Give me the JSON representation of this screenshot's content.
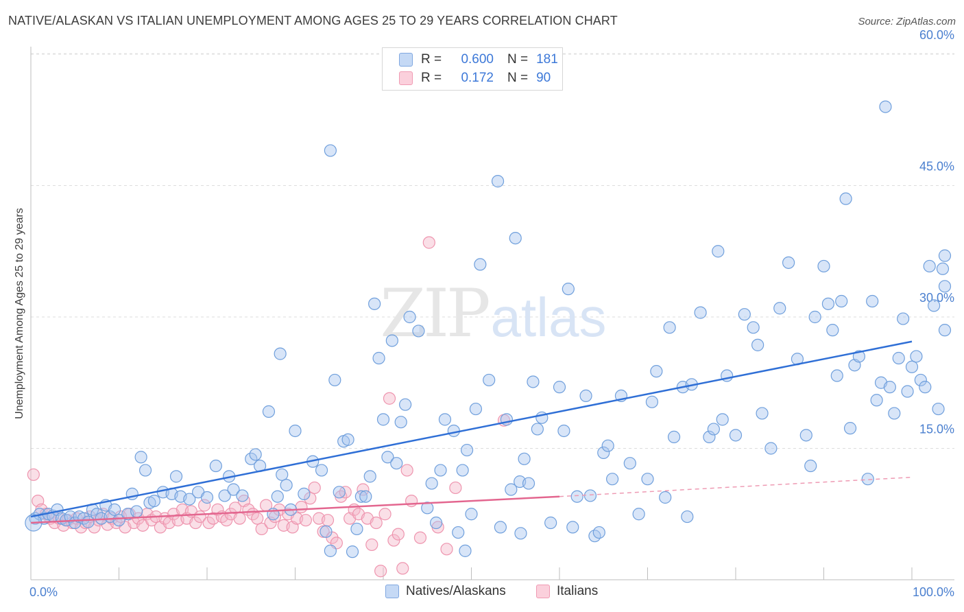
{
  "title": "NATIVE/ALASKAN VS ITALIAN UNEMPLOYMENT AMONG AGES 25 TO 29 YEARS CORRELATION CHART",
  "source": "Source: ZipAtlas.com",
  "watermark": {
    "zip": "ZIP",
    "atlas": "atlas"
  },
  "legend": {
    "rows": [
      {
        "r_label": "R =",
        "r_value": "0.600",
        "n_label": "N =",
        "n_value": "181",
        "color": "#a9c6ef"
      },
      {
        "r_label": "R =",
        "r_value": "0.172",
        "n_label": "N =",
        "n_value": "90",
        "color": "#f5b8c9"
      }
    ]
  },
  "bottom_legend": [
    {
      "label": "Natives/Alaskans",
      "color": "#a9c6ef"
    },
    {
      "label": "Italians",
      "color": "#f5b8c9"
    }
  ],
  "chart_data": {
    "type": "scatter",
    "title": "NATIVE/ALASKAN VS ITALIAN UNEMPLOYMENT AMONG AGES 25 TO 29 YEARS CORRELATION CHART",
    "xlabel": "",
    "ylabel": "Unemployment Among Ages 25 to 29 years",
    "xlim": [
      0,
      100
    ],
    "ylim": [
      0,
      62
    ],
    "x_tick_labels": [
      "0.0%",
      "100.0%"
    ],
    "y_ticks": [
      15,
      30,
      45,
      60
    ],
    "y_tick_labels": [
      "15.0%",
      "30.0%",
      "45.0%",
      "60.0%"
    ],
    "grid": true,
    "series": [
      {
        "name": "Natives/Alaskans",
        "color": "#6fa0e0",
        "trend": {
          "x": [
            0,
            100
          ],
          "y": [
            7.2,
            27.2
          ],
          "style": "solid"
        },
        "points": [
          [
            0.5,
            7
          ],
          [
            1,
            7.5
          ],
          [
            1.5,
            7
          ],
          [
            2,
            7.5
          ],
          [
            2.5,
            7.3
          ],
          [
            3,
            8
          ],
          [
            3.5,
            7
          ],
          [
            4,
            6.8
          ],
          [
            4.5,
            7.2
          ],
          [
            5,
            6.5
          ],
          [
            5.5,
            7.2
          ],
          [
            6,
            7
          ],
          [
            6.5,
            6.6
          ],
          [
            7,
            8
          ],
          [
            7.5,
            7.5
          ],
          [
            8,
            7
          ],
          [
            8.5,
            8.5
          ],
          [
            9,
            7.2
          ],
          [
            9.5,
            8
          ],
          [
            10,
            6.8
          ],
          [
            11,
            7.5
          ],
          [
            11.5,
            9.8
          ],
          [
            12,
            7.8
          ],
          [
            12.5,
            14
          ],
          [
            13,
            12.5
          ],
          [
            13.5,
            8.8
          ],
          [
            14,
            9
          ],
          [
            15,
            10
          ],
          [
            16,
            9.8
          ],
          [
            16.5,
            11.8
          ],
          [
            17,
            9.5
          ],
          [
            18,
            9.2
          ],
          [
            19,
            10
          ],
          [
            20,
            9.4
          ],
          [
            21,
            13
          ],
          [
            22,
            9.6
          ],
          [
            22.5,
            11.8
          ],
          [
            23,
            10.3
          ],
          [
            24,
            9.6
          ],
          [
            25,
            13.8
          ],
          [
            25.5,
            14.3
          ],
          [
            26,
            13
          ],
          [
            27,
            19.2
          ],
          [
            27.5,
            7.5
          ],
          [
            28,
            9.5
          ],
          [
            28.5,
            12
          ],
          [
            29,
            10.8
          ],
          [
            29.5,
            8
          ],
          [
            30,
            17
          ],
          [
            31,
            9.8
          ],
          [
            32,
            13.5
          ],
          [
            33,
            12.5
          ],
          [
            33.5,
            5.5
          ],
          [
            34,
            3.3
          ],
          [
            34.5,
            22.8
          ],
          [
            35,
            10
          ],
          [
            35.5,
            15.8
          ],
          [
            36,
            16
          ],
          [
            36.5,
            3.2
          ],
          [
            37,
            5.8
          ],
          [
            37.5,
            9.5
          ],
          [
            38,
            9.5
          ],
          [
            38.5,
            11.8
          ],
          [
            39,
            31.5
          ],
          [
            39.5,
            25.3
          ],
          [
            40,
            18.3
          ],
          [
            40.5,
            14
          ],
          [
            41,
            27.3
          ],
          [
            41.5,
            13.3
          ],
          [
            42,
            18
          ],
          [
            42.5,
            20
          ],
          [
            43,
            30
          ],
          [
            44,
            28.4
          ],
          [
            45,
            8.2
          ],
          [
            45.5,
            11
          ],
          [
            46,
            6.5
          ],
          [
            46.5,
            12.5
          ],
          [
            47,
            18.3
          ],
          [
            48,
            17
          ],
          [
            48.5,
            5.4
          ],
          [
            49,
            12.5
          ],
          [
            49.5,
            14.8
          ],
          [
            50,
            7.5
          ],
          [
            50.5,
            19.5
          ],
          [
            51,
            36
          ],
          [
            52,
            22.8
          ],
          [
            53,
            45.5
          ],
          [
            54,
            18.3
          ],
          [
            54.5,
            10.3
          ],
          [
            55,
            39
          ],
          [
            55.5,
            11.2
          ],
          [
            56,
            13.8
          ],
          [
            56.5,
            11
          ],
          [
            57,
            22.6
          ],
          [
            57.5,
            17.2
          ],
          [
            58,
            18.5
          ],
          [
            59,
            6.5
          ],
          [
            60,
            22
          ],
          [
            60.5,
            17
          ],
          [
            61,
            33.2
          ],
          [
            61.5,
            6
          ],
          [
            62,
            9.5
          ],
          [
            63,
            21
          ],
          [
            63.5,
            9.6
          ],
          [
            64,
            5
          ],
          [
            64.5,
            5.4
          ],
          [
            65,
            14.5
          ],
          [
            65.5,
            15.3
          ],
          [
            66,
            11.5
          ],
          [
            67,
            21
          ],
          [
            68,
            13.3
          ],
          [
            69,
            7.5
          ],
          [
            70,
            11.5
          ],
          [
            70.5,
            20.3
          ],
          [
            71,
            23.8
          ],
          [
            72,
            9.4
          ],
          [
            72.5,
            28.8
          ],
          [
            73,
            16.3
          ],
          [
            74,
            22
          ],
          [
            74.5,
            7.2
          ],
          [
            75,
            22.3
          ],
          [
            76,
            30.5
          ],
          [
            77,
            16.3
          ],
          [
            77.5,
            17.2
          ],
          [
            78,
            37.5
          ],
          [
            78.5,
            18.3
          ],
          [
            79,
            23.3
          ],
          [
            80,
            16.5
          ],
          [
            81,
            30.3
          ],
          [
            82,
            28.8
          ],
          [
            82.5,
            26.8
          ],
          [
            83,
            19
          ],
          [
            84,
            15
          ],
          [
            85,
            31
          ],
          [
            86,
            36.2
          ],
          [
            87,
            25.2
          ],
          [
            88,
            16.5
          ],
          [
            88.5,
            13
          ],
          [
            89,
            30
          ],
          [
            90,
            35.8
          ],
          [
            90.5,
            31.5
          ],
          [
            91,
            28.5
          ],
          [
            91.5,
            23.3
          ],
          [
            92,
            31.8
          ],
          [
            93,
            17.3
          ],
          [
            93.5,
            24.5
          ],
          [
            94,
            25.5
          ],
          [
            95,
            11.5
          ],
          [
            95.5,
            31.8
          ],
          [
            96,
            20.5
          ],
          [
            96.5,
            22.5
          ],
          [
            97,
            54
          ],
          [
            97.5,
            22
          ],
          [
            98,
            19
          ],
          [
            98.5,
            25.3
          ],
          [
            99,
            29.8
          ],
          [
            99.5,
            21.5
          ],
          [
            100,
            24.3
          ],
          [
            100.5,
            25.5
          ],
          [
            101,
            22.8
          ],
          [
            101.5,
            22
          ],
          [
            102,
            35.8
          ],
          [
            102.5,
            31.3
          ],
          [
            103,
            19.5
          ],
          [
            103.5,
            35.5
          ],
          [
            104,
            28.5
          ],
          [
            104.5,
            33.5
          ],
          [
            105,
            37
          ],
          [
            92.5,
            43.5
          ],
          [
            34,
            49
          ],
          [
            49.3,
            3.3
          ],
          [
            53.3,
            6
          ],
          [
            55.6,
            5.3
          ],
          [
            28.3,
            25.8
          ]
        ]
      },
      {
        "name": "Italians",
        "color": "#f08aa8",
        "trend": {
          "x": [
            0,
            60,
            100
          ],
          "y": [
            6.5,
            9.5,
            11.7
          ],
          "solid_until": 60
        },
        "points": [
          [
            0.3,
            12
          ],
          [
            0.8,
            9
          ],
          [
            1.2,
            8
          ],
          [
            1.7,
            7.5
          ],
          [
            2.2,
            7
          ],
          [
            2.7,
            6.5
          ],
          [
            3.2,
            7
          ],
          [
            3.7,
            6.2
          ],
          [
            4.2,
            6.8
          ],
          [
            4.7,
            6.5
          ],
          [
            5.2,
            7
          ],
          [
            5.7,
            6
          ],
          [
            6.2,
            6.5
          ],
          [
            6.7,
            7.2
          ],
          [
            7.2,
            6
          ],
          [
            7.7,
            6.8
          ],
          [
            8.2,
            7.5
          ],
          [
            8.7,
            6.3
          ],
          [
            9.2,
            7
          ],
          [
            9.7,
            6.5
          ],
          [
            10.2,
            7.2
          ],
          [
            10.7,
            6
          ],
          [
            11.2,
            7.5
          ],
          [
            11.7,
            6.5
          ],
          [
            12.2,
            7
          ],
          [
            12.7,
            6.2
          ],
          [
            13.2,
            7.5
          ],
          [
            13.7,
            6.8
          ],
          [
            14.2,
            7.2
          ],
          [
            14.7,
            6
          ],
          [
            15.2,
            7
          ],
          [
            15.7,
            6.5
          ],
          [
            16.2,
            7.5
          ],
          [
            16.7,
            6.8
          ],
          [
            17.2,
            8
          ],
          [
            17.7,
            7
          ],
          [
            18.2,
            7.8
          ],
          [
            18.7,
            6.5
          ],
          [
            19.2,
            7.2
          ],
          [
            19.7,
            8.5
          ],
          [
            20.2,
            6.5
          ],
          [
            20.7,
            7
          ],
          [
            21.2,
            8
          ],
          [
            21.7,
            7.2
          ],
          [
            22.2,
            6.8
          ],
          [
            22.7,
            7.5
          ],
          [
            23.2,
            8.2
          ],
          [
            23.7,
            7
          ],
          [
            24.2,
            9
          ],
          [
            24.7,
            8
          ],
          [
            25.2,
            7.5
          ],
          [
            25.7,
            7
          ],
          [
            26.2,
            5.8
          ],
          [
            26.7,
            8.5
          ],
          [
            27.2,
            6.5
          ],
          [
            27.7,
            7.2
          ],
          [
            28.2,
            8
          ],
          [
            28.7,
            6.2
          ],
          [
            29.2,
            7.5
          ],
          [
            29.7,
            6
          ],
          [
            30.2,
            7
          ],
          [
            30.7,
            8.3
          ],
          [
            31.2,
            6.8
          ],
          [
            31.7,
            9.3
          ],
          [
            32.2,
            10.5
          ],
          [
            32.7,
            7
          ],
          [
            33.2,
            5.5
          ],
          [
            33.7,
            6.8
          ],
          [
            34.2,
            4.8
          ],
          [
            34.7,
            4.2
          ],
          [
            35.2,
            9.5
          ],
          [
            35.7,
            10
          ],
          [
            36.2,
            7
          ],
          [
            36.7,
            8
          ],
          [
            37.2,
            7.5
          ],
          [
            37.7,
            10.3
          ],
          [
            38.2,
            7
          ],
          [
            38.7,
            4
          ],
          [
            39.2,
            6.5
          ],
          [
            39.7,
            1
          ],
          [
            40.2,
            7.5
          ],
          [
            40.7,
            20.7
          ],
          [
            41.2,
            4.5
          ],
          [
            41.7,
            5.2
          ],
          [
            42.2,
            1.3
          ],
          [
            42.7,
            12.5
          ],
          [
            43.2,
            9
          ],
          [
            44.2,
            4.8
          ],
          [
            45.2,
            38.5
          ],
          [
            46.2,
            6
          ],
          [
            47.2,
            3.5
          ],
          [
            48.2,
            10.5
          ],
          [
            53.7,
            18.2
          ]
        ]
      }
    ]
  }
}
